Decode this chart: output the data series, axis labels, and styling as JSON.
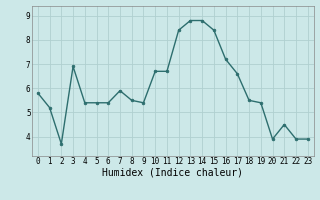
{
  "x": [
    0,
    1,
    2,
    3,
    4,
    5,
    6,
    7,
    8,
    9,
    10,
    11,
    12,
    13,
    14,
    15,
    16,
    17,
    18,
    19,
    20,
    21,
    22,
    23
  ],
  "y": [
    5.8,
    5.2,
    3.7,
    6.9,
    5.4,
    5.4,
    5.4,
    5.9,
    5.5,
    5.4,
    6.7,
    6.7,
    8.4,
    8.8,
    8.8,
    8.4,
    7.2,
    6.6,
    5.5,
    5.4,
    3.9,
    4.5,
    3.9,
    3.9
  ],
  "line_color": "#2d6e6e",
  "marker": "o",
  "marker_size": 2,
  "bg_color": "#cce8e8",
  "grid_color": "#b0d0d0",
  "xlabel": "Humidex (Indice chaleur)",
  "ylim": [
    3.2,
    9.4
  ],
  "xlim": [
    -0.5,
    23.5
  ],
  "yticks": [
    4,
    5,
    6,
    7,
    8,
    9
  ],
  "xticks": [
    0,
    1,
    2,
    3,
    4,
    5,
    6,
    7,
    8,
    9,
    10,
    11,
    12,
    13,
    14,
    15,
    16,
    17,
    18,
    19,
    20,
    21,
    22,
    23
  ],
  "tick_fontsize": 5.5,
  "xlabel_fontsize": 7.0
}
